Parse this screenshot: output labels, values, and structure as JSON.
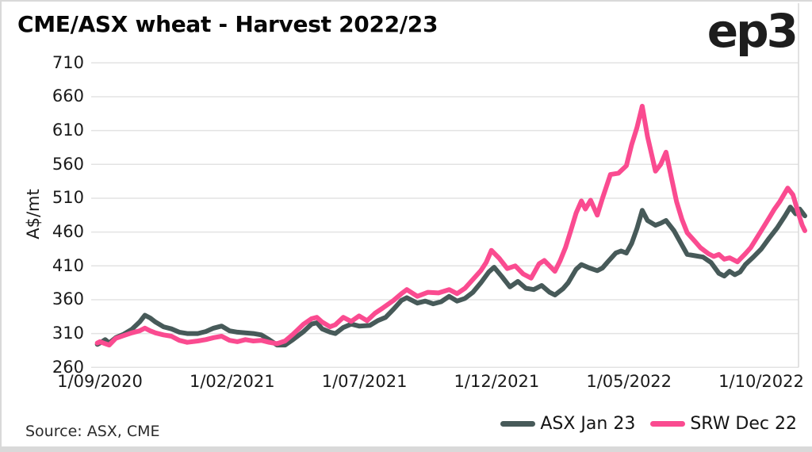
{
  "header": {
    "title": "CME/ASX wheat - Harvest 2022/23",
    "logo_text": "ep3"
  },
  "footer": {
    "source": "Source: ASX, CME"
  },
  "chart_data": {
    "type": "line",
    "title": "CME/ASX wheat - Harvest 2022/23",
    "xlabel": "",
    "ylabel": "A$/mt",
    "ylim": [
      260,
      710
    ],
    "y_ticks": [
      710,
      660,
      610,
      560,
      510,
      460,
      410,
      360,
      310,
      260
    ],
    "x_unit": "months since 1/09/2020",
    "x_ticks": [
      {
        "m": 0,
        "label": "1/09/2020"
      },
      {
        "m": 5,
        "label": "1/02/2021"
      },
      {
        "m": 10,
        "label": "1/07/2021"
      },
      {
        "m": 15,
        "label": "1/12/2021"
      },
      {
        "m": 20,
        "label": "1/05/2022"
      },
      {
        "m": 25,
        "label": "1/10/2022"
      }
    ],
    "grid": "horizontal",
    "legend_position": "bottom-right",
    "colors": {
      "gridline": "#e3e3e3",
      "frame": "#d9d9d9",
      "axis_text": "#1a1a1a"
    },
    "series": [
      {
        "name": "ASX Jan 23",
        "color": "#475a59",
        "points": [
          [
            -0.1,
            294
          ],
          [
            0,
            296
          ],
          [
            0.2,
            301
          ],
          [
            0.35,
            296
          ],
          [
            0.6,
            304
          ],
          [
            0.9,
            309
          ],
          [
            1.2,
            316
          ],
          [
            1.5,
            327
          ],
          [
            1.7,
            337
          ],
          [
            1.9,
            333
          ],
          [
            2.1,
            327
          ],
          [
            2.4,
            320
          ],
          [
            2.7,
            317
          ],
          [
            3,
            312
          ],
          [
            3.3,
            310
          ],
          [
            3.7,
            310
          ],
          [
            4,
            313
          ],
          [
            4.3,
            318
          ],
          [
            4.6,
            321
          ],
          [
            4.9,
            314
          ],
          [
            5.2,
            312
          ],
          [
            5.5,
            311
          ],
          [
            5.8,
            310
          ],
          [
            6.1,
            308
          ],
          [
            6.4,
            301
          ],
          [
            6.7,
            293
          ],
          [
            7,
            293
          ],
          [
            7.3,
            301
          ],
          [
            7.7,
            313
          ],
          [
            8,
            324
          ],
          [
            8.2,
            326
          ],
          [
            8.4,
            317
          ],
          [
            8.7,
            312
          ],
          [
            8.9,
            310
          ],
          [
            9.2,
            319
          ],
          [
            9.5,
            324
          ],
          [
            9.8,
            321
          ],
          [
            10.2,
            322
          ],
          [
            10.5,
            329
          ],
          [
            10.8,
            334
          ],
          [
            11.1,
            346
          ],
          [
            11.4,
            359
          ],
          [
            11.6,
            363
          ],
          [
            12,
            355
          ],
          [
            12.3,
            358
          ],
          [
            12.6,
            354
          ],
          [
            12.9,
            357
          ],
          [
            13.2,
            365
          ],
          [
            13.5,
            358
          ],
          [
            13.8,
            362
          ],
          [
            14.1,
            371
          ],
          [
            14.4,
            385
          ],
          [
            14.7,
            401
          ],
          [
            14.9,
            408
          ],
          [
            15.2,
            394
          ],
          [
            15.5,
            379
          ],
          [
            15.8,
            387
          ],
          [
            16.1,
            377
          ],
          [
            16.4,
            375
          ],
          [
            16.7,
            381
          ],
          [
            17,
            371
          ],
          [
            17.2,
            367
          ],
          [
            17.5,
            376
          ],
          [
            17.7,
            385
          ],
          [
            18,
            405
          ],
          [
            18.2,
            412
          ],
          [
            18.5,
            407
          ],
          [
            18.8,
            403
          ],
          [
            19,
            407
          ],
          [
            19.2,
            416
          ],
          [
            19.5,
            429
          ],
          [
            19.7,
            432
          ],
          [
            19.9,
            429
          ],
          [
            20.1,
            443
          ],
          [
            20.3,
            465
          ],
          [
            20.5,
            492
          ],
          [
            20.7,
            477
          ],
          [
            21,
            470
          ],
          [
            21.2,
            473
          ],
          [
            21.4,
            477
          ],
          [
            21.7,
            462
          ],
          [
            22,
            441
          ],
          [
            22.2,
            427
          ],
          [
            22.5,
            425
          ],
          [
            22.8,
            423
          ],
          [
            23.1,
            415
          ],
          [
            23.4,
            399
          ],
          [
            23.6,
            395
          ],
          [
            23.8,
            402
          ],
          [
            24,
            397
          ],
          [
            24.2,
            401
          ],
          [
            24.4,
            412
          ],
          [
            24.7,
            423
          ],
          [
            25,
            435
          ],
          [
            25.3,
            451
          ],
          [
            25.6,
            466
          ],
          [
            25.9,
            484
          ],
          [
            26.1,
            497
          ],
          [
            26.3,
            487
          ],
          [
            26.45,
            494
          ],
          [
            26.65,
            484
          ]
        ]
      },
      {
        "name": "SRW Dec 22",
        "color": "#fa4b90",
        "points": [
          [
            -0.1,
            296
          ],
          [
            0,
            298
          ],
          [
            0.2,
            295
          ],
          [
            0.35,
            293
          ],
          [
            0.6,
            303
          ],
          [
            0.9,
            307
          ],
          [
            1.2,
            311
          ],
          [
            1.5,
            314
          ],
          [
            1.7,
            318
          ],
          [
            1.9,
            314
          ],
          [
            2.1,
            311
          ],
          [
            2.4,
            308
          ],
          [
            2.7,
            306
          ],
          [
            3,
            300
          ],
          [
            3.3,
            297
          ],
          [
            3.7,
            299
          ],
          [
            4,
            301
          ],
          [
            4.3,
            304
          ],
          [
            4.6,
            306
          ],
          [
            4.9,
            300
          ],
          [
            5.2,
            298
          ],
          [
            5.5,
            301
          ],
          [
            5.8,
            299
          ],
          [
            6.1,
            300
          ],
          [
            6.4,
            297
          ],
          [
            6.7,
            295
          ],
          [
            7,
            299
          ],
          [
            7.3,
            309
          ],
          [
            7.7,
            324
          ],
          [
            8,
            332
          ],
          [
            8.2,
            334
          ],
          [
            8.4,
            327
          ],
          [
            8.7,
            320
          ],
          [
            8.9,
            323
          ],
          [
            9.2,
            334
          ],
          [
            9.5,
            328
          ],
          [
            9.8,
            336
          ],
          [
            10.1,
            329
          ],
          [
            10.4,
            340
          ],
          [
            10.7,
            348
          ],
          [
            11.1,
            359
          ],
          [
            11.4,
            369
          ],
          [
            11.6,
            375
          ],
          [
            12,
            365
          ],
          [
            12.4,
            371
          ],
          [
            12.8,
            370
          ],
          [
            13.2,
            375
          ],
          [
            13.5,
            369
          ],
          [
            13.8,
            377
          ],
          [
            14.1,
            390
          ],
          [
            14.4,
            403
          ],
          [
            14.6,
            415
          ],
          [
            14.8,
            433
          ],
          [
            15.1,
            421
          ],
          [
            15.4,
            406
          ],
          [
            15.7,
            410
          ],
          [
            16,
            398
          ],
          [
            16.3,
            392
          ],
          [
            16.6,
            413
          ],
          [
            16.8,
            418
          ],
          [
            17,
            410
          ],
          [
            17.2,
            402
          ],
          [
            17.4,
            418
          ],
          [
            17.6,
            437
          ],
          [
            17.8,
            462
          ],
          [
            18,
            488
          ],
          [
            18.2,
            506
          ],
          [
            18.35,
            494
          ],
          [
            18.55,
            507
          ],
          [
            18.8,
            485
          ],
          [
            19,
            510
          ],
          [
            19.3,
            545
          ],
          [
            19.6,
            547
          ],
          [
            19.9,
            558
          ],
          [
            20.1,
            589
          ],
          [
            20.3,
            614
          ],
          [
            20.5,
            646
          ],
          [
            20.7,
            601
          ],
          [
            21,
            550
          ],
          [
            21.2,
            560
          ],
          [
            21.4,
            578
          ],
          [
            21.6,
            541
          ],
          [
            21.8,
            505
          ],
          [
            22,
            479
          ],
          [
            22.2,
            459
          ],
          [
            22.5,
            446
          ],
          [
            22.7,
            437
          ],
          [
            23,
            428
          ],
          [
            23.2,
            424
          ],
          [
            23.4,
            427
          ],
          [
            23.6,
            420
          ],
          [
            23.8,
            422
          ],
          [
            24.1,
            416
          ],
          [
            24.4,
            428
          ],
          [
            24.6,
            437
          ],
          [
            25,
            462
          ],
          [
            25.3,
            481
          ],
          [
            25.5,
            494
          ],
          [
            25.7,
            505
          ],
          [
            26,
            525
          ],
          [
            26.2,
            515
          ],
          [
            26.4,
            488
          ],
          [
            26.55,
            470
          ],
          [
            26.65,
            462
          ]
        ]
      }
    ]
  }
}
